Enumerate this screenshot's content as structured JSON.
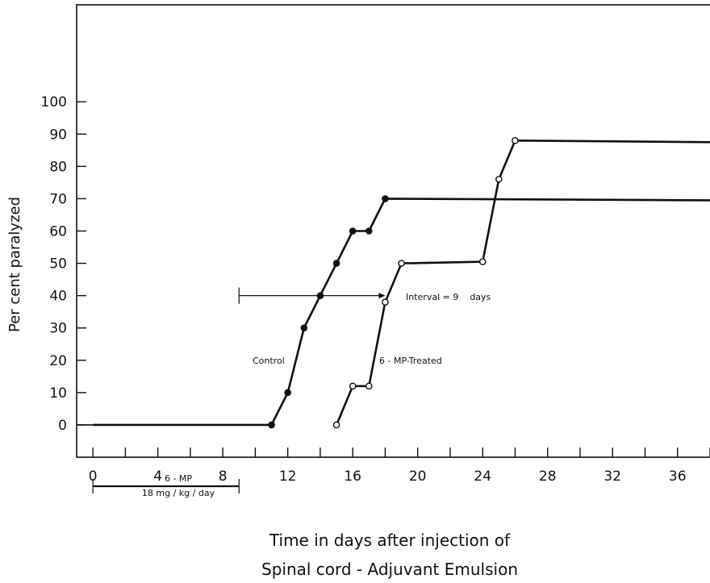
{
  "chart_data": {
    "type": "line",
    "ylabel": "Per cent paralyzed",
    "xlabel_lines": [
      "Time  in  days  after  injection  of",
      "Spinal  cord - Adjuvant  Emulsion"
    ],
    "x_ticks": [
      0,
      4,
      8,
      12,
      16,
      20,
      24,
      28,
      32,
      36
    ],
    "y_ticks": [
      0,
      10,
      20,
      30,
      40,
      50,
      60,
      70,
      80,
      90,
      100
    ],
    "xlim": [
      -1,
      38
    ],
    "ylim": [
      -10,
      130
    ],
    "grid": false,
    "series": [
      {
        "name": "Control",
        "marker": "filled",
        "points": [
          [
            0,
            0
          ],
          [
            11,
            0
          ],
          [
            12,
            10
          ],
          [
            13,
            30
          ],
          [
            14,
            40
          ],
          [
            15,
            50
          ],
          [
            16,
            60
          ],
          [
            17,
            60
          ],
          [
            18,
            70
          ],
          [
            38,
            69.5
          ]
        ]
      },
      {
        "name": "6 - MP-Treated",
        "marker": "open",
        "points": [
          [
            15,
            0
          ],
          [
            16,
            12
          ],
          [
            17,
            12
          ],
          [
            18,
            38
          ],
          [
            19,
            50
          ],
          [
            24,
            50.5
          ],
          [
            25,
            76
          ],
          [
            26,
            88
          ],
          [
            38,
            87.5
          ]
        ]
      }
    ],
    "annotations": {
      "interval": {
        "label": "Interval = 9    days",
        "x_start": 9,
        "x_end": 18,
        "y": 40
      },
      "treatment_bar": {
        "label_top": "6 - MP",
        "label_bottom": "18 mg / kg / day",
        "x_start": 0,
        "x_end": 9
      }
    }
  }
}
